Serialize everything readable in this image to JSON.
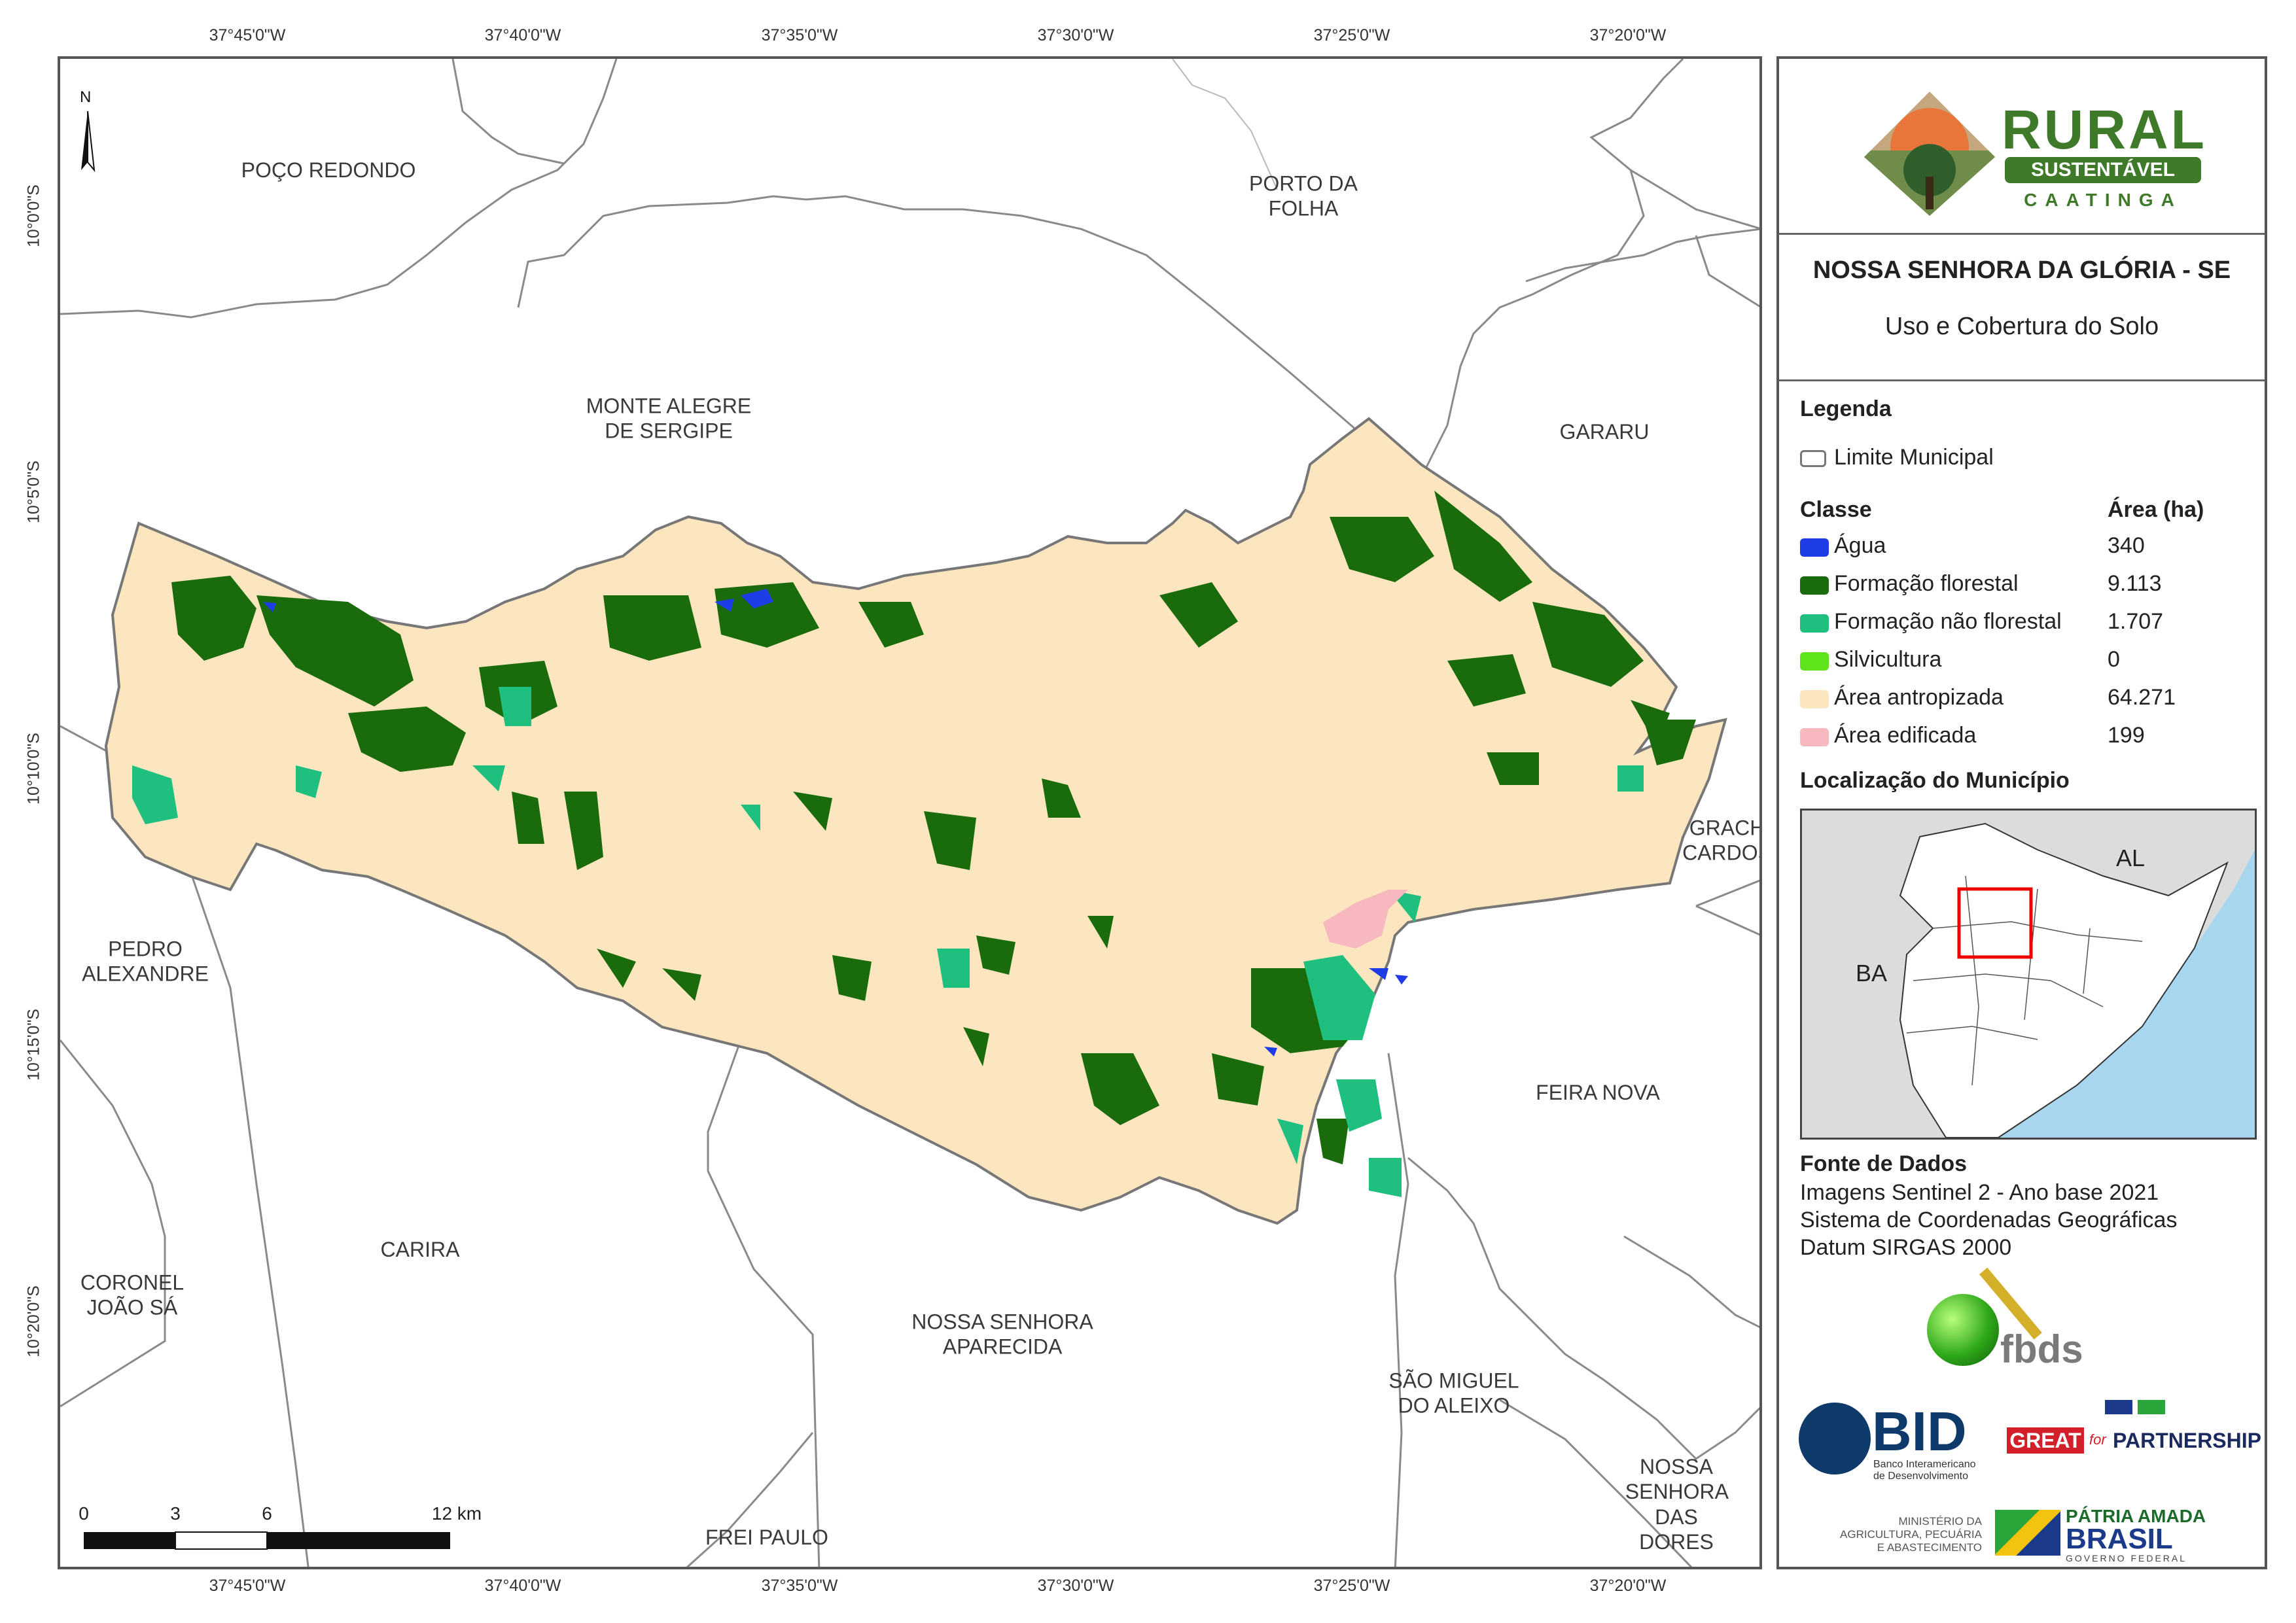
{
  "map": {
    "north_label": "N",
    "top_longitudes": [
      "37°45'0\"W",
      "37°40'0\"W",
      "37°35'0\"W",
      "37°30'0\"W",
      "37°25'0\"W",
      "37°20'0\"W"
    ],
    "bottom_longitudes": [
      "37°45'0\"W",
      "37°40'0\"W",
      "37°35'0\"W",
      "37°30'0\"W",
      "37°25'0\"W",
      "37°20'0\"W"
    ],
    "left_latitudes": [
      "10°0'0\"S",
      "10°5'0\"S",
      "10°10'0\"S",
      "10°15'0\"S",
      "10°20'0\"S"
    ],
    "neighbor_municipalities": [
      "POÇO REDONDO",
      "PORTO DA\nFOLHA",
      "MONTE ALEGRE\nDE SERGIPE",
      "GARARU",
      "GRACHO\nCARDOSO",
      "PEDRO\nALEXANDRE",
      "FEIRA NOVA",
      "CORONEL\nJOÃO SÁ",
      "CARIRA",
      "NOSSA SENHORA\nAPARECIDA",
      "SÃO MIGUEL\nDO ALEIXO",
      "NOSSA\nSENHORA DAS\nDORES",
      "FREI PAULO"
    ],
    "scale_bar": {
      "ticks": [
        "0",
        "3",
        "6",
        "12 km"
      ]
    },
    "colors": {
      "anthropized": "#fbe6c0",
      "forest": "#1a6b0c",
      "non_forest": "#1fbf7f",
      "water": "#1f3de6",
      "built": "#f7b8c0",
      "boundary": "#777777"
    }
  },
  "panel": {
    "logo": {
      "title": "RURAL",
      "subtitle": "SUSTENTÁVEL",
      "region": "CAATINGA"
    },
    "title": "NOSSA SENHORA DA GLÓRIA - SE",
    "subtitle": "Uso e Cobertura do Solo",
    "legend_heading": "Legenda",
    "boundary_label": "Limite Municipal",
    "class_heading": "Classe",
    "area_heading": "Área (ha)",
    "classes": [
      {
        "label": "Água",
        "area": "340",
        "color": "#1f3de6"
      },
      {
        "label": "Formação florestal",
        "area": "9.113",
        "color": "#1a6b0c"
      },
      {
        "label": "Formação não florestal",
        "area": "1.707",
        "color": "#1fbf7f"
      },
      {
        "label": "Silvicultura",
        "area": "0",
        "color": "#5fe31a"
      },
      {
        "label": "Área antropizada",
        "area": "64.271",
        "color": "#fbe6c0"
      },
      {
        "label": "Área edificada",
        "area": "199",
        "color": "#f7b8c0"
      }
    ],
    "location_heading": "Localização do Município",
    "inset_labels": {
      "al": "AL",
      "ba": "BA"
    },
    "source_heading": "Fonte de Dados",
    "source_lines": [
      "Imagens Sentinel 2 - Ano base 2021",
      "Sistema de Coordenadas Geográficas",
      "Datum SIRGAS 2000"
    ],
    "partners": {
      "fbds": "fbds",
      "bid": "BID",
      "bid_sub": "Banco Interamericano\nde Desenvolvimento",
      "great": "GREAT",
      "great_for": "for",
      "partnership": "PARTNERSHIP",
      "ministry": "MINISTÉRIO DA\nAGRICULTURA, PECUÁRIA\nE ABASTECIMENTO",
      "patria": "PÁTRIA AMADA",
      "brasil": "BRASIL",
      "governo": "GOVERNO FEDERAL"
    }
  }
}
